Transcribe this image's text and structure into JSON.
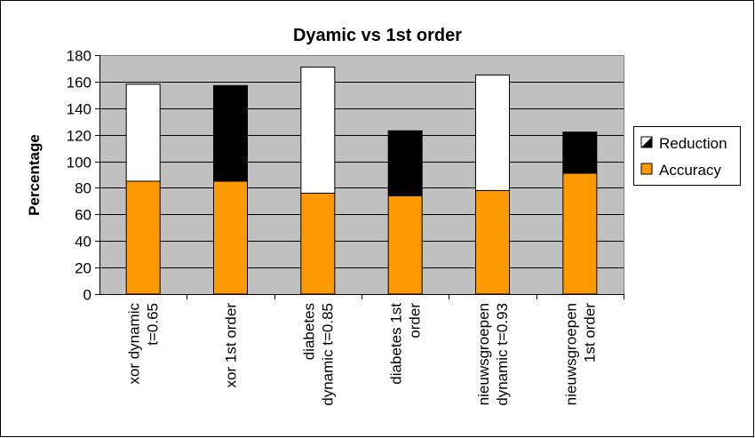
{
  "chart_data": {
    "type": "bar",
    "stacked": true,
    "title": "Dyamic vs 1st order",
    "ylabel": "Percentage",
    "xlabel": "",
    "ylim": [
      0,
      180
    ],
    "ytick_step": 20,
    "grid": true,
    "legend_position": "right",
    "categories": [
      [
        "xor dynamic",
        "t=0.65"
      ],
      [
        "xor 1st order"
      ],
      [
        "diabetes",
        "dynamic t=0.85"
      ],
      [
        "diabetes 1st",
        "order"
      ],
      [
        "nieuwsgroepen",
        "dynamic t=0.93"
      ],
      [
        "nieuwsgroepen",
        "1st order"
      ]
    ],
    "series": [
      {
        "name": "Accuracy",
        "values": [
          85,
          85,
          76,
          74,
          78,
          91
        ]
      },
      {
        "name": "Reduction",
        "values": [
          73,
          72,
          95,
          49,
          87,
          31
        ]
      }
    ],
    "bar_colors": [
      [
        "#ff9900",
        "#ffffff"
      ],
      [
        "#ff9900",
        "#000000"
      ],
      [
        "#ff9900",
        "#ffffff"
      ],
      [
        "#ff9900",
        "#000000"
      ],
      [
        "#ff9900",
        "#ffffff"
      ],
      [
        "#ff9900",
        "#000000"
      ]
    ],
    "plot_background": "#c0c0c0",
    "legend_colors": {
      "Reduction": "#000000",
      "Accuracy": "#ff9900"
    }
  }
}
